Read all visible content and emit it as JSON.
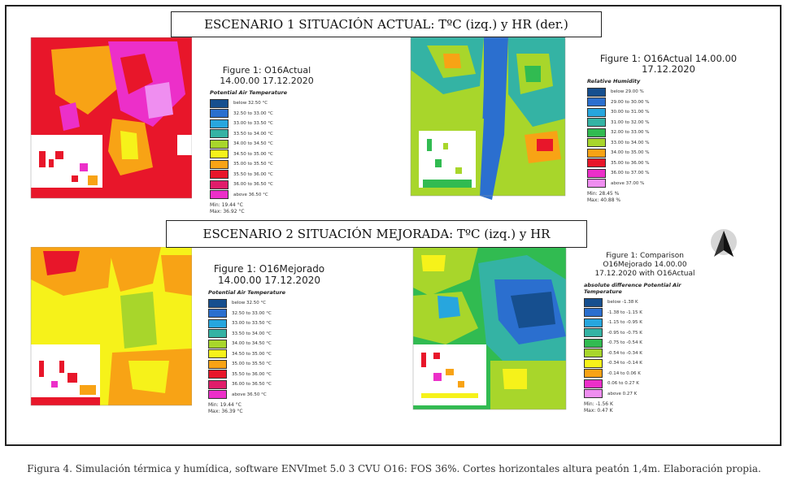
{
  "banner1": "ESCENARIO 1 SITUACIÓN ACTUAL: TºC (izq.) y HR (der.)",
  "banner2": "ESCENARIO 2 SITUACIÓN MEJORADA: TºC (izq.) y HR",
  "caption": "Figura 4. Simulación térmica y humídica, software ENVImet 5.0 3 CVU O16: FOS 36%. Cortes horizontales altura peatón 1,4m. Elaboración propia.",
  "north_icon": "north-arrow-icon",
  "colors": {
    "magenta": "#ec2fc9",
    "red": "#e8162a",
    "orange": "#f8a315",
    "yellow": "#f6f21a",
    "ygreen": "#a8d62b",
    "green": "#31bb51",
    "teal": "#34b3a4",
    "cyan": "#27a6de",
    "blue": "#2b6fcf",
    "navy": "#164f8f",
    "white": "#ffffff",
    "lpink": "#ef8ef0"
  },
  "panels": {
    "p1": {
      "title": "Figure 1: O16Actual 14.00.00 17.12.2020",
      "subtitle": "Potential Air Temperature",
      "legend": [
        "below 32.50 °C",
        "32.50 to 33.00 °C",
        "33.00 to 33.50 °C",
        "33.50 to 34.00 °C",
        "34.00 to 34.50 °C",
        "34.50 to 35.00 °C",
        "35.00 to 35.50 °C",
        "35.50 to 36.00 °C",
        "36.00 to 36.50 °C",
        "above 36.50 °C"
      ],
      "legend_colors": [
        "#164f8f",
        "#2b6fcf",
        "#27a6de",
        "#34b3a4",
        "#a8d62b",
        "#f6f21a",
        "#f8a315",
        "#e8162a",
        "#e01d6a",
        "#ec2fc9"
      ],
      "min": "Min: 19.44 °C",
      "max": "Max: 36.92 °C"
    },
    "p2": {
      "title": "Figure 1: O16Actual 14.00.00 17.12.2020",
      "subtitle": "Relative Humidity",
      "legend": [
        "below 29.00 %",
        "29.00 to 30.00 %",
        "30.00 to 31.00 %",
        "31.00 to 32.00 %",
        "32.00 to 33.00 %",
        "33.00 to 34.00 %",
        "34.00 to 35.00 %",
        "35.00 to 36.00 %",
        "36.00 to 37.00 %",
        "above 37.00 %"
      ],
      "legend_colors": [
        "#164f8f",
        "#2b6fcf",
        "#27a6de",
        "#34b3a4",
        "#31bb51",
        "#a8d62b",
        "#f8a315",
        "#e8162a",
        "#ec2fc9",
        "#ef8ef0"
      ],
      "min": "Min: 28.45 %",
      "max": "Max: 40.88 %"
    },
    "p3": {
      "title": "Figure 1: O16Mejorado 14.00.00 17.12.2020",
      "subtitle": "Potential Air Temperature",
      "legend": [
        "below 32.50 °C",
        "32.50 to 33.00 °C",
        "33.00 to 33.50 °C",
        "33.50 to 34.00 °C",
        "34.00 to 34.50 °C",
        "34.50 to 35.00 °C",
        "35.00 to 35.50 °C",
        "35.50 to 36.00 °C",
        "36.00 to 36.50 °C",
        "above 36.50 °C"
      ],
      "legend_colors": [
        "#164f8f",
        "#2b6fcf",
        "#27a6de",
        "#34b3a4",
        "#a8d62b",
        "#f6f21a",
        "#f8a315",
        "#e8162a",
        "#e01d6a",
        "#ec2fc9"
      ],
      "min": "Min: 19.44 °C",
      "max": "Max: 36.39 °C"
    },
    "p4": {
      "title": "Figure 1: Comparison O16Mejorado 14.00.00 17.12.2020 with O16Actual",
      "subtitle": "absolute difference Potential Air Temperature",
      "legend": [
        "below -1.38 K",
        "-1.38 to -1.15 K",
        "-1.15 to -0.95 K",
        "-0.95 to -0.75 K",
        "-0.75 to -0.54 K",
        "-0.54 to -0.34 K",
        "-0.34 to -0.14 K",
        "-0.14 to 0.06 K",
        "0.06 to 0.27 K",
        "above 0.27 K"
      ],
      "legend_colors": [
        "#164f8f",
        "#2b6fcf",
        "#27a6de",
        "#34b3a4",
        "#31bb51",
        "#a8d62b",
        "#f6f21a",
        "#f8a315",
        "#ec2fc9",
        "#ef8ef0"
      ],
      "min": "Min: -1.56 K",
      "max": "Max: 0.47 K"
    }
  }
}
